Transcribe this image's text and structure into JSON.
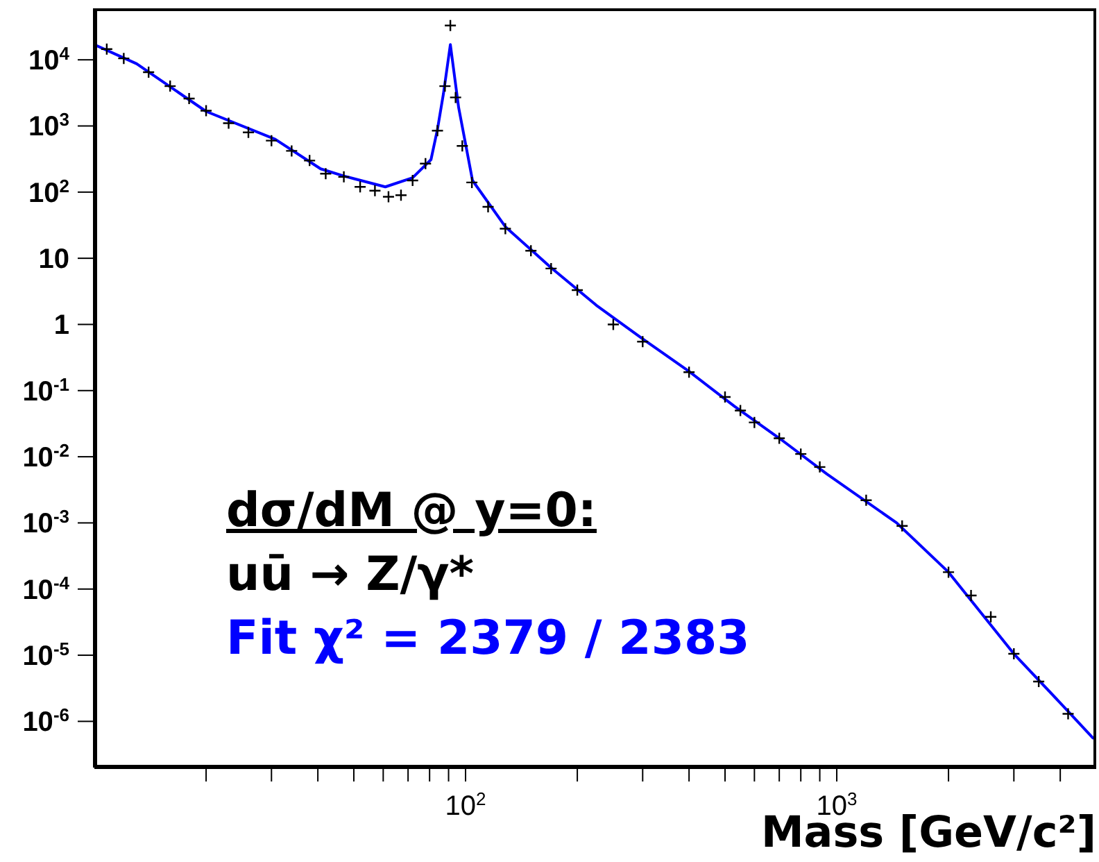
{
  "chart_data": {
    "type": "line",
    "xlabel": "Mass [GeV/c²]",
    "annotations": [
      "dσ/dM @ y=0:",
      "uū → Z/γ*",
      "Fit χ² = 2379 / 2383"
    ],
    "log": "xy",
    "xlim": [
      10,
      5000
    ],
    "xticks": [
      {
        "value": 20,
        "label": null
      },
      {
        "value": 30,
        "label": null
      },
      {
        "value": 40,
        "label": null
      },
      {
        "value": 50,
        "label": null
      },
      {
        "value": 60,
        "label": null
      },
      {
        "value": 70,
        "label": null
      },
      {
        "value": 80,
        "label": null
      },
      {
        "value": 90,
        "label": null
      },
      {
        "value": 100,
        "label": "10$^{2}$"
      },
      {
        "value": 200,
        "label": null
      },
      {
        "value": 300,
        "label": null
      },
      {
        "value": 400,
        "label": null
      },
      {
        "value": 500,
        "label": null
      },
      {
        "value": 600,
        "label": null
      },
      {
        "value": 700,
        "label": null
      },
      {
        "value": 800,
        "label": null
      },
      {
        "value": 900,
        "label": null
      },
      {
        "value": 1000,
        "label": "10$^{3}$"
      },
      {
        "value": 2000,
        "label": null
      },
      {
        "value": 3000,
        "label": null
      },
      {
        "value": 4000,
        "label": null
      }
    ],
    "ylim": [
      2e-07,
      60000
    ],
    "yticks": [
      {
        "value": 1e-06,
        "label": "10$^{-6}$"
      },
      {
        "value": 1e-05,
        "label": "10$^{-5}$"
      },
      {
        "value": 0.0001,
        "label": "10$^{-4}$"
      },
      {
        "value": 0.001,
        "label": "10$^{-3}$"
      },
      {
        "value": 0.01,
        "label": "10$^{-2}$"
      },
      {
        "value": 0.1,
        "label": "10$^{-1}$"
      },
      1,
      10,
      {
        "value": 100,
        "label": "10$^{2}$"
      },
      {
        "value": 1000,
        "label": "10$^{3}$"
      },
      {
        "value": 10000,
        "label": "10$^{4}$"
      }
    ],
    "series": [
      {
        "type": "scatter",
        "color": "#000000",
        "marker": "cross",
        "x": [
          10.8,
          12,
          14,
          16,
          18,
          20,
          23,
          26,
          30,
          34,
          38,
          42,
          47,
          52,
          57,
          62,
          67,
          72,
          78,
          84,
          88,
          91,
          94,
          98,
          104,
          115,
          128,
          150,
          170,
          200,
          250,
          300,
          400,
          500,
          550,
          600,
          700,
          800,
          900,
          1200,
          1500,
          2000,
          2300,
          2600,
          3000,
          3500,
          4200
        ],
        "values": [
          14500,
          10500,
          6500,
          4000,
          2600,
          1700,
          1100,
          800,
          600,
          420,
          300,
          190,
          170,
          120,
          105,
          85,
          90,
          150,
          270,
          850,
          4000,
          33000,
          2700,
          500,
          140,
          60,
          28,
          13,
          7,
          3.3,
          1.0,
          0.55,
          0.19,
          0.08,
          0.05,
          0.033,
          0.019,
          0.011,
          0.007,
          0.0022,
          0.0009,
          0.00018,
          8e-05,
          3.8e-05,
          1.05e-05,
          4e-06,
          1.3e-06
        ]
      },
      {
        "color": "#0000ff",
        "marker": "none",
        "x": [
          10,
          13,
          20,
          30.7,
          40.7,
          47,
          60.8,
          72,
          80.7,
          84,
          87.2,
          91,
          95.8,
          104.4,
          128,
          170,
          225,
          302,
          400,
          530,
          710,
          940,
          1450,
          2000,
          3000,
          4000,
          4900
        ],
        "values": [
          17000,
          8700,
          1660,
          630,
          225,
          175,
          120,
          165,
          310,
          890,
          3100,
          17000,
          1900,
          150,
          30,
          7.2,
          1.95,
          0.59,
          0.195,
          0.058,
          0.018,
          0.0055,
          0.001,
          0.00018,
          1.05e-05,
          1.9e-06,
          5.6e-07
        ]
      }
    ]
  }
}
